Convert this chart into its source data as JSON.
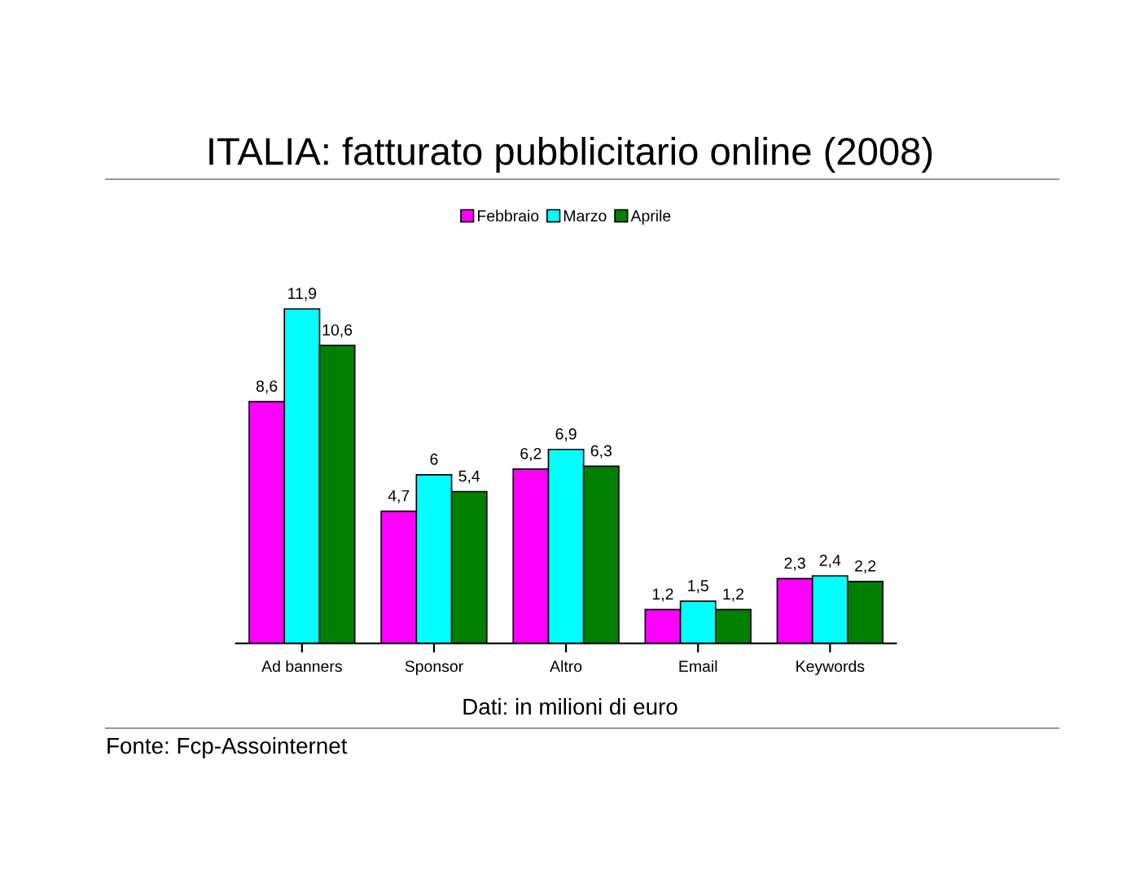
{
  "chart_data": {
    "type": "bar",
    "title": "ITALIA: fatturato pubblicitario online (2008)",
    "categories": [
      "Ad banners",
      "Sponsor",
      "Altro",
      "Email",
      "Keywords"
    ],
    "series": [
      {
        "name": "Febbraio",
        "color": "#ff00ff",
        "values": [
          8.6,
          4.7,
          6.2,
          1.2,
          2.3
        ],
        "value_labels": [
          "8,6",
          "4,7",
          "6,2",
          "1,2",
          "2,3"
        ]
      },
      {
        "name": "Marzo",
        "color": "#00ffff",
        "values": [
          11.9,
          6,
          6.9,
          1.5,
          2.4
        ],
        "value_labels": [
          "11,9",
          "6",
          "6,9",
          "1,5",
          "2,4"
        ]
      },
      {
        "name": "Aprile",
        "color": "#008000",
        "values": [
          10.6,
          5.4,
          6.3,
          1.2,
          2.2
        ],
        "value_labels": [
          "10,6",
          "5,4",
          "6,3",
          "1,2",
          "2,2"
        ]
      }
    ],
    "xlabel": "Dati: in milioni di euro",
    "annotations": [
      "Fonte: Fcp-Assointernet"
    ],
    "legend": "top",
    "grid": false
  }
}
